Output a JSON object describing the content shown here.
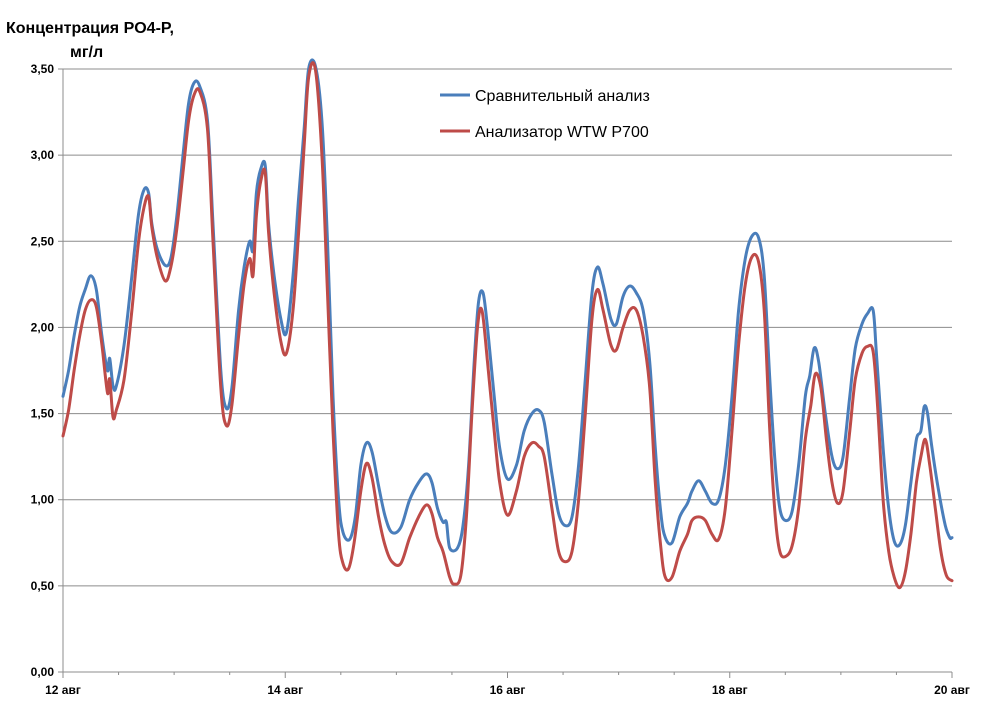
{
  "chart_data": {
    "type": "line",
    "ylabel_lines": [
      "Концентрация PO4-P,",
      "мг/л"
    ],
    "xlabel": "",
    "ylim": [
      0,
      3.5
    ],
    "y_ticks": [
      "0,00",
      "0,50",
      "1,00",
      "1,50",
      "2,00",
      "2,50",
      "3,00",
      "3,50"
    ],
    "x_range_days": [
      12,
      20
    ],
    "x_ticks": [
      {
        "day": 12,
        "label": "12 авг"
      },
      {
        "day": 14,
        "label": "14 авг"
      },
      {
        "day": 16,
        "label": "16 авг"
      },
      {
        "day": 18,
        "label": "18 авг"
      },
      {
        "day": 20,
        "label": "20 авг"
      }
    ],
    "grid": "horizontal",
    "legend_position": "top-center",
    "series": [
      {
        "name": "Сравнительный анализ",
        "color": "#4a7ebb",
        "points": [
          [
            12.0,
            1.6
          ],
          [
            12.05,
            1.75
          ],
          [
            12.1,
            1.95
          ],
          [
            12.15,
            2.12
          ],
          [
            12.2,
            2.22
          ],
          [
            12.25,
            2.3
          ],
          [
            12.3,
            2.22
          ],
          [
            12.35,
            1.95
          ],
          [
            12.4,
            1.75
          ],
          [
            12.42,
            1.82
          ],
          [
            12.45,
            1.66
          ],
          [
            12.48,
            1.66
          ],
          [
            12.55,
            1.9
          ],
          [
            12.62,
            2.3
          ],
          [
            12.68,
            2.66
          ],
          [
            12.73,
            2.8
          ],
          [
            12.77,
            2.78
          ],
          [
            12.8,
            2.6
          ],
          [
            12.85,
            2.45
          ],
          [
            12.92,
            2.36
          ],
          [
            12.97,
            2.4
          ],
          [
            13.02,
            2.62
          ],
          [
            13.08,
            3.0
          ],
          [
            13.13,
            3.3
          ],
          [
            13.18,
            3.42
          ],
          [
            13.23,
            3.4
          ],
          [
            13.3,
            3.2
          ],
          [
            13.35,
            2.6
          ],
          [
            13.42,
            1.75
          ],
          [
            13.47,
            1.53
          ],
          [
            13.52,
            1.65
          ],
          [
            13.58,
            2.1
          ],
          [
            13.63,
            2.35
          ],
          [
            13.68,
            2.5
          ],
          [
            13.71,
            2.45
          ],
          [
            13.74,
            2.78
          ],
          [
            13.78,
            2.92
          ],
          [
            13.82,
            2.94
          ],
          [
            13.85,
            2.6
          ],
          [
            13.9,
            2.3
          ],
          [
            13.96,
            2.05
          ],
          [
            14.01,
            1.97
          ],
          [
            14.07,
            2.3
          ],
          [
            14.12,
            2.75
          ],
          [
            14.17,
            3.15
          ],
          [
            14.21,
            3.5
          ],
          [
            14.27,
            3.52
          ],
          [
            14.33,
            3.2
          ],
          [
            14.38,
            2.5
          ],
          [
            14.43,
            1.6
          ],
          [
            14.48,
            1.0
          ],
          [
            14.52,
            0.81
          ],
          [
            14.58,
            0.77
          ],
          [
            14.63,
            0.9
          ],
          [
            14.68,
            1.2
          ],
          [
            14.73,
            1.33
          ],
          [
            14.78,
            1.28
          ],
          [
            14.84,
            1.08
          ],
          [
            14.9,
            0.9
          ],
          [
            14.96,
            0.81
          ],
          [
            15.04,
            0.84
          ],
          [
            15.12,
            1.0
          ],
          [
            15.2,
            1.1
          ],
          [
            15.27,
            1.15
          ],
          [
            15.32,
            1.1
          ],
          [
            15.37,
            0.95
          ],
          [
            15.42,
            0.87
          ],
          [
            15.45,
            0.87
          ],
          [
            15.48,
            0.72
          ],
          [
            15.55,
            0.72
          ],
          [
            15.6,
            0.85
          ],
          [
            15.65,
            1.2
          ],
          [
            15.7,
            1.8
          ],
          [
            15.74,
            2.15
          ],
          [
            15.78,
            2.2
          ],
          [
            15.82,
            2.0
          ],
          [
            15.88,
            1.6
          ],
          [
            15.93,
            1.3
          ],
          [
            16.0,
            1.12
          ],
          [
            16.08,
            1.2
          ],
          [
            16.15,
            1.4
          ],
          [
            16.22,
            1.5
          ],
          [
            16.28,
            1.52
          ],
          [
            16.33,
            1.45
          ],
          [
            16.4,
            1.15
          ],
          [
            16.46,
            0.92
          ],
          [
            16.52,
            0.85
          ],
          [
            16.58,
            0.9
          ],
          [
            16.64,
            1.2
          ],
          [
            16.7,
            1.7
          ],
          [
            16.76,
            2.2
          ],
          [
            16.81,
            2.35
          ],
          [
            16.86,
            2.25
          ],
          [
            16.93,
            2.05
          ],
          [
            16.98,
            2.02
          ],
          [
            17.04,
            2.18
          ],
          [
            17.1,
            2.24
          ],
          [
            17.16,
            2.2
          ],
          [
            17.22,
            2.1
          ],
          [
            17.28,
            1.8
          ],
          [
            17.33,
            1.3
          ],
          [
            17.38,
            0.92
          ],
          [
            17.42,
            0.78
          ],
          [
            17.48,
            0.75
          ],
          [
            17.55,
            0.9
          ],
          [
            17.62,
            0.98
          ],
          [
            17.66,
            1.05
          ],
          [
            17.72,
            1.11
          ],
          [
            17.78,
            1.05
          ],
          [
            17.84,
            0.98
          ],
          [
            17.9,
            1.0
          ],
          [
            17.96,
            1.2
          ],
          [
            18.02,
            1.6
          ],
          [
            18.08,
            2.1
          ],
          [
            18.14,
            2.4
          ],
          [
            18.2,
            2.53
          ],
          [
            18.26,
            2.52
          ],
          [
            18.31,
            2.3
          ],
          [
            18.36,
            1.7
          ],
          [
            18.41,
            1.2
          ],
          [
            18.45,
            0.95
          ],
          [
            18.5,
            0.88
          ],
          [
            18.56,
            0.93
          ],
          [
            18.62,
            1.2
          ],
          [
            18.68,
            1.6
          ],
          [
            18.72,
            1.72
          ],
          [
            18.76,
            1.88
          ],
          [
            18.8,
            1.8
          ],
          [
            18.86,
            1.5
          ],
          [
            18.92,
            1.25
          ],
          [
            18.97,
            1.18
          ],
          [
            19.02,
            1.25
          ],
          [
            19.08,
            1.6
          ],
          [
            19.13,
            1.88
          ],
          [
            19.19,
            2.02
          ],
          [
            19.24,
            2.08
          ],
          [
            19.29,
            2.1
          ],
          [
            19.32,
            1.85
          ],
          [
            19.38,
            1.3
          ],
          [
            19.43,
            0.95
          ],
          [
            19.48,
            0.76
          ],
          [
            19.53,
            0.74
          ],
          [
            19.58,
            0.85
          ],
          [
            19.63,
            1.1
          ],
          [
            19.68,
            1.35
          ],
          [
            19.72,
            1.4
          ],
          [
            19.75,
            1.54
          ],
          [
            19.78,
            1.5
          ],
          [
            19.82,
            1.3
          ],
          [
            19.88,
            1.05
          ],
          [
            19.94,
            0.85
          ],
          [
            19.98,
            0.78
          ],
          [
            20.0,
            0.78
          ]
        ]
      },
      {
        "name": "Анализатор WTW P700",
        "color": "#be4b48",
        "points": [
          [
            12.0,
            1.37
          ],
          [
            12.05,
            1.52
          ],
          [
            12.1,
            1.75
          ],
          [
            12.15,
            1.95
          ],
          [
            12.2,
            2.1
          ],
          [
            12.25,
            2.16
          ],
          [
            12.3,
            2.12
          ],
          [
            12.35,
            1.9
          ],
          [
            12.4,
            1.62
          ],
          [
            12.42,
            1.7
          ],
          [
            12.45,
            1.48
          ],
          [
            12.48,
            1.52
          ],
          [
            12.55,
            1.7
          ],
          [
            12.62,
            2.1
          ],
          [
            12.68,
            2.5
          ],
          [
            12.73,
            2.7
          ],
          [
            12.77,
            2.76
          ],
          [
            12.8,
            2.58
          ],
          [
            12.85,
            2.4
          ],
          [
            12.92,
            2.27
          ],
          [
            12.97,
            2.35
          ],
          [
            13.02,
            2.55
          ],
          [
            13.08,
            2.9
          ],
          [
            13.13,
            3.2
          ],
          [
            13.18,
            3.35
          ],
          [
            13.23,
            3.37
          ],
          [
            13.3,
            3.15
          ],
          [
            13.35,
            2.5
          ],
          [
            13.42,
            1.65
          ],
          [
            13.47,
            1.43
          ],
          [
            13.52,
            1.55
          ],
          [
            13.58,
            1.95
          ],
          [
            13.63,
            2.25
          ],
          [
            13.68,
            2.4
          ],
          [
            13.71,
            2.3
          ],
          [
            13.74,
            2.65
          ],
          [
            13.78,
            2.85
          ],
          [
            13.82,
            2.9
          ],
          [
            13.85,
            2.55
          ],
          [
            13.9,
            2.2
          ],
          [
            13.96,
            1.92
          ],
          [
            14.01,
            1.85
          ],
          [
            14.07,
            2.1
          ],
          [
            14.12,
            2.55
          ],
          [
            14.17,
            3.05
          ],
          [
            14.21,
            3.45
          ],
          [
            14.27,
            3.5
          ],
          [
            14.33,
            3.0
          ],
          [
            14.38,
            2.2
          ],
          [
            14.43,
            1.4
          ],
          [
            14.48,
            0.8
          ],
          [
            14.52,
            0.63
          ],
          [
            14.57,
            0.6
          ],
          [
            14.62,
            0.75
          ],
          [
            14.68,
            1.05
          ],
          [
            14.73,
            1.21
          ],
          [
            14.78,
            1.13
          ],
          [
            14.84,
            0.9
          ],
          [
            14.9,
            0.73
          ],
          [
            14.96,
            0.64
          ],
          [
            15.04,
            0.63
          ],
          [
            15.12,
            0.78
          ],
          [
            15.2,
            0.9
          ],
          [
            15.27,
            0.97
          ],
          [
            15.32,
            0.92
          ],
          [
            15.37,
            0.78
          ],
          [
            15.42,
            0.7
          ],
          [
            15.48,
            0.55
          ],
          [
            15.52,
            0.51
          ],
          [
            15.58,
            0.56
          ],
          [
            15.63,
            0.9
          ],
          [
            15.68,
            1.5
          ],
          [
            15.73,
            2.0
          ],
          [
            15.77,
            2.1
          ],
          [
            15.82,
            1.8
          ],
          [
            15.88,
            1.4
          ],
          [
            15.93,
            1.1
          ],
          [
            16.0,
            0.91
          ],
          [
            16.08,
            1.05
          ],
          [
            16.15,
            1.25
          ],
          [
            16.22,
            1.33
          ],
          [
            16.28,
            1.31
          ],
          [
            16.33,
            1.25
          ],
          [
            16.4,
            0.95
          ],
          [
            16.46,
            0.7
          ],
          [
            16.52,
            0.64
          ],
          [
            16.58,
            0.7
          ],
          [
            16.64,
            1.0
          ],
          [
            16.7,
            1.5
          ],
          [
            16.76,
            2.05
          ],
          [
            16.81,
            2.22
          ],
          [
            16.86,
            2.1
          ],
          [
            16.93,
            1.9
          ],
          [
            16.98,
            1.87
          ],
          [
            17.04,
            2.0
          ],
          [
            17.1,
            2.1
          ],
          [
            17.16,
            2.1
          ],
          [
            17.22,
            1.95
          ],
          [
            17.28,
            1.65
          ],
          [
            17.33,
            1.1
          ],
          [
            17.38,
            0.72
          ],
          [
            17.42,
            0.55
          ],
          [
            17.48,
            0.55
          ],
          [
            17.55,
            0.7
          ],
          [
            17.62,
            0.8
          ],
          [
            17.66,
            0.88
          ],
          [
            17.72,
            0.9
          ],
          [
            17.78,
            0.88
          ],
          [
            17.84,
            0.8
          ],
          [
            17.9,
            0.77
          ],
          [
            17.96,
            0.95
          ],
          [
            18.02,
            1.4
          ],
          [
            18.08,
            1.9
          ],
          [
            18.14,
            2.25
          ],
          [
            18.2,
            2.41
          ],
          [
            18.26,
            2.38
          ],
          [
            18.31,
            2.1
          ],
          [
            18.36,
            1.4
          ],
          [
            18.41,
            0.9
          ],
          [
            18.45,
            0.7
          ],
          [
            18.5,
            0.67
          ],
          [
            18.56,
            0.73
          ],
          [
            18.62,
            0.95
          ],
          [
            18.68,
            1.35
          ],
          [
            18.73,
            1.55
          ],
          [
            18.77,
            1.73
          ],
          [
            18.82,
            1.65
          ],
          [
            18.87,
            1.35
          ],
          [
            18.92,
            1.1
          ],
          [
            18.97,
            0.98
          ],
          [
            19.02,
            1.05
          ],
          [
            19.08,
            1.4
          ],
          [
            19.13,
            1.7
          ],
          [
            19.19,
            1.85
          ],
          [
            19.24,
            1.89
          ],
          [
            19.29,
            1.86
          ],
          [
            19.33,
            1.55
          ],
          [
            19.38,
            1.0
          ],
          [
            19.43,
            0.7
          ],
          [
            19.48,
            0.55
          ],
          [
            19.53,
            0.49
          ],
          [
            19.58,
            0.58
          ],
          [
            19.63,
            0.8
          ],
          [
            19.68,
            1.1
          ],
          [
            19.72,
            1.25
          ],
          [
            19.76,
            1.35
          ],
          [
            19.8,
            1.2
          ],
          [
            19.85,
            0.95
          ],
          [
            19.9,
            0.7
          ],
          [
            19.95,
            0.56
          ],
          [
            20.0,
            0.53
          ]
        ]
      }
    ]
  }
}
